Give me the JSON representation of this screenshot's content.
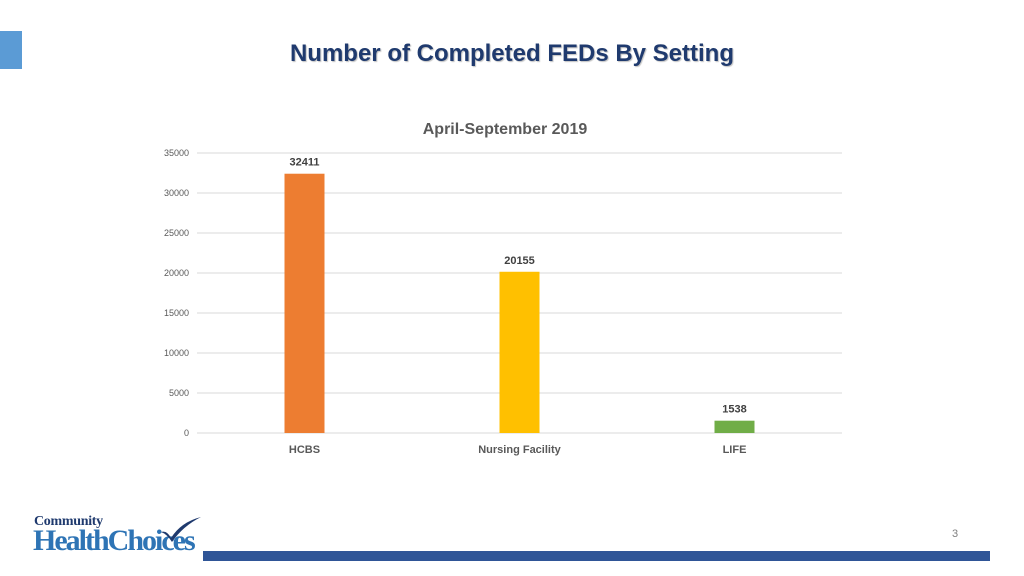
{
  "slide": {
    "title": "Number of Completed FEDs By Setting",
    "page_number": "3",
    "accent_color": "#5b9bd5",
    "footer_bar_color": "#2f5597",
    "logo": {
      "line1": "Community",
      "line2": "HealthChoices",
      "icon": "checkmark-icon"
    }
  },
  "chart_data": {
    "type": "bar",
    "title": "April-September 2019",
    "categories": [
      "HCBS",
      "Nursing Facility",
      "LIFE"
    ],
    "values": [
      32411,
      20155,
      1538
    ],
    "colors": [
      "#ed7d31",
      "#ffc000",
      "#70ad47"
    ],
    "ylim": [
      0,
      35000
    ],
    "yticks": [
      0,
      5000,
      10000,
      15000,
      20000,
      25000,
      30000,
      35000
    ],
    "grid": true,
    "legend": "none",
    "xlabel": "",
    "ylabel": ""
  }
}
